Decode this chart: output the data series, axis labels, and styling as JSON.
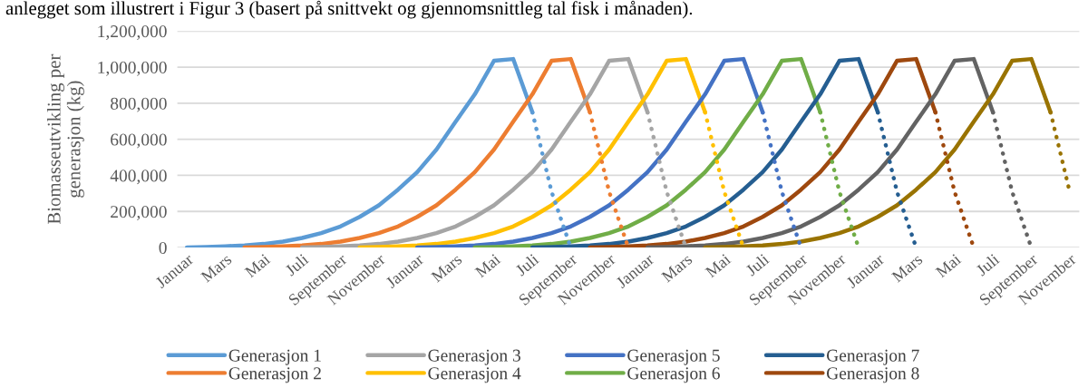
{
  "chart_data": {
    "type": "line",
    "annotations": [
      "anlegget som illustrert i Figur 3 (basert på snittvekt og gjennomsnittleg tal fisk i månaden)."
    ],
    "ylabel": "Biomasseutvikling per\ngenerasjon (kg)",
    "categories": [
      "Januar",
      null,
      "Mars",
      null,
      "Mai",
      null,
      "Juli",
      null,
      "September",
      null,
      "November",
      null,
      "Januar",
      null,
      "Mars",
      null,
      "Mai",
      null,
      "Juli",
      null,
      "September",
      null,
      "November",
      null,
      "Januar",
      null,
      "Mars",
      null,
      "Mai",
      null,
      "Juli",
      null,
      "September",
      null,
      "November",
      null,
      "Januar",
      null,
      "Mars",
      null,
      "Mai",
      null,
      "Juli",
      null,
      "September",
      null,
      "November"
    ],
    "ylim": [
      0,
      1200000
    ],
    "yticks": [
      {
        "value": 0,
        "label": "0"
      },
      {
        "value": 200000,
        "label": "200,000"
      },
      {
        "value": 400000,
        "label": "400,000"
      },
      {
        "value": 600000,
        "label": "600,000"
      },
      {
        "value": 800000,
        "label": "800,000"
      },
      {
        "value": 1000000,
        "label": "1,000,000"
      },
      {
        "value": 1200000,
        "label": "1,200,000"
      }
    ],
    "grid": "y",
    "legend": "bottom",
    "marker": "none",
    "series": [
      {
        "name": "Generasjon 1",
        "color": "#5b9bd5",
        "line_style": "solid",
        "values": [
          1000,
          3000,
          7000,
          12000,
          20000,
          33000,
          53000,
          80000,
          117000,
          170000,
          234000,
          321000,
          418000,
          543000,
          697000,
          849000,
          1035000,
          1045000,
          750000,
          null,
          null,
          null,
          null,
          null,
          null,
          null,
          null,
          null,
          null,
          null,
          null,
          null,
          null,
          null,
          null,
          null,
          null,
          null,
          null,
          null,
          null,
          null,
          null,
          null,
          null,
          null,
          null
        ]
      },
      {
        "name": "Generasjon 2",
        "color": "#ed7d31",
        "line_style": "solid",
        "values": [
          null,
          null,
          null,
          1000,
          3000,
          7000,
          12000,
          20000,
          33000,
          53000,
          80000,
          117000,
          170000,
          234000,
          321000,
          418000,
          543000,
          697000,
          849000,
          1035000,
          1045000,
          750000,
          null,
          null,
          null,
          null,
          null,
          null,
          null,
          null,
          null,
          null,
          null,
          null,
          null,
          null,
          null,
          null,
          null,
          null,
          null,
          null,
          null,
          null,
          null,
          null,
          null
        ]
      },
      {
        "name": "Generasjon 3",
        "color": "#a5a5a5",
        "line_style": "solid",
        "values": [
          null,
          null,
          null,
          null,
          null,
          null,
          1000,
          3000,
          7000,
          12000,
          20000,
          33000,
          53000,
          80000,
          117000,
          170000,
          234000,
          321000,
          418000,
          543000,
          697000,
          849000,
          1035000,
          1045000,
          750000,
          null,
          null,
          null,
          null,
          null,
          null,
          null,
          null,
          null,
          null,
          null,
          null,
          null,
          null,
          null,
          null,
          null,
          null,
          null,
          null,
          null,
          null
        ]
      },
      {
        "name": "Generasjon 4",
        "color": "#ffc000",
        "line_style": "solid",
        "values": [
          null,
          null,
          null,
          null,
          null,
          null,
          null,
          null,
          null,
          1000,
          3000,
          7000,
          12000,
          20000,
          33000,
          53000,
          80000,
          117000,
          170000,
          234000,
          321000,
          418000,
          543000,
          697000,
          849000,
          1035000,
          1045000,
          750000,
          null,
          null,
          null,
          null,
          null,
          null,
          null,
          null,
          null,
          null,
          null,
          null,
          null,
          null,
          null,
          null,
          null,
          null,
          null
        ]
      },
      {
        "name": "Generasjon 5",
        "color": "#4472c4",
        "line_style": "solid",
        "values": [
          null,
          null,
          null,
          null,
          null,
          null,
          null,
          null,
          null,
          null,
          null,
          null,
          1000,
          3000,
          7000,
          12000,
          20000,
          33000,
          53000,
          80000,
          117000,
          170000,
          234000,
          321000,
          418000,
          543000,
          697000,
          849000,
          1035000,
          1045000,
          750000,
          null,
          null,
          null,
          null,
          null,
          null,
          null,
          null,
          null,
          null,
          null,
          null,
          null,
          null,
          null,
          null
        ]
      },
      {
        "name": "Generasjon 6",
        "color": "#70ad47",
        "line_style": "solid",
        "values": [
          null,
          null,
          null,
          null,
          null,
          null,
          null,
          null,
          null,
          null,
          null,
          null,
          null,
          null,
          null,
          1000,
          3000,
          7000,
          12000,
          20000,
          33000,
          53000,
          80000,
          117000,
          170000,
          234000,
          321000,
          418000,
          543000,
          697000,
          849000,
          1035000,
          1045000,
          750000,
          null,
          null,
          null,
          null,
          null,
          null,
          null,
          null,
          null,
          null,
          null,
          null,
          null
        ]
      },
      {
        "name": "Generasjon 7",
        "color": "#255e91",
        "line_style": "solid",
        "values": [
          null,
          null,
          null,
          null,
          null,
          null,
          null,
          null,
          null,
          null,
          null,
          null,
          null,
          null,
          null,
          null,
          null,
          null,
          1000,
          3000,
          7000,
          12000,
          20000,
          33000,
          53000,
          80000,
          117000,
          170000,
          234000,
          321000,
          418000,
          543000,
          697000,
          849000,
          1035000,
          1045000,
          750000,
          null,
          null,
          null,
          null,
          null,
          null,
          null,
          null,
          null,
          null
        ]
      },
      {
        "name": "Generasjon 8",
        "color": "#9e480e",
        "line_style": "solid",
        "values": [
          null,
          null,
          null,
          null,
          null,
          null,
          null,
          null,
          null,
          null,
          null,
          null,
          null,
          null,
          null,
          null,
          null,
          null,
          null,
          null,
          null,
          1000,
          3000,
          7000,
          12000,
          20000,
          33000,
          53000,
          80000,
          117000,
          170000,
          234000,
          321000,
          418000,
          543000,
          697000,
          849000,
          1035000,
          1045000,
          750000,
          null,
          null,
          null,
          null,
          null,
          null,
          null
        ]
      },
      {
        "color": "#636363",
        "line_style": "solid",
        "values": [
          null,
          null,
          null,
          null,
          null,
          null,
          null,
          null,
          null,
          null,
          null,
          null,
          null,
          null,
          null,
          null,
          null,
          null,
          null,
          null,
          null,
          null,
          null,
          null,
          1000,
          3000,
          7000,
          12000,
          20000,
          33000,
          53000,
          80000,
          117000,
          170000,
          234000,
          321000,
          418000,
          543000,
          697000,
          849000,
          1035000,
          1045000,
          750000,
          null,
          null,
          null,
          null
        ]
      },
      {
        "color": "#997300",
        "line_style": "solid",
        "values": [
          null,
          null,
          null,
          null,
          null,
          null,
          null,
          null,
          null,
          null,
          null,
          null,
          null,
          null,
          null,
          null,
          null,
          null,
          null,
          null,
          null,
          null,
          null,
          null,
          null,
          null,
          null,
          1000,
          3000,
          7000,
          12000,
          20000,
          33000,
          53000,
          80000,
          117000,
          170000,
          234000,
          321000,
          418000,
          543000,
          697000,
          849000,
          1035000,
          1045000,
          750000,
          null
        ]
      },
      {
        "color": "#5b9bd5",
        "line_style": "dotted",
        "values": [
          null,
          null,
          null,
          null,
          null,
          null,
          null,
          null,
          null,
          null,
          null,
          null,
          null,
          null,
          null,
          null,
          null,
          null,
          750000,
          310000,
          0,
          null,
          null,
          null,
          null,
          null,
          null,
          null,
          null,
          null,
          null,
          null,
          null,
          null,
          null,
          null,
          null,
          null,
          null,
          null,
          null,
          null,
          null,
          null,
          null,
          null,
          null
        ]
      },
      {
        "color": "#ed7d31",
        "line_style": "dotted",
        "values": [
          null,
          null,
          null,
          null,
          null,
          null,
          null,
          null,
          null,
          null,
          null,
          null,
          null,
          null,
          null,
          null,
          null,
          null,
          null,
          null,
          null,
          750000,
          310000,
          0,
          null,
          null,
          null,
          null,
          null,
          null,
          null,
          null,
          null,
          null,
          null,
          null,
          null,
          null,
          null,
          null,
          null,
          null,
          null,
          null,
          null,
          null,
          null
        ]
      },
      {
        "color": "#a5a5a5",
        "line_style": "dotted",
        "values": [
          null,
          null,
          null,
          null,
          null,
          null,
          null,
          null,
          null,
          null,
          null,
          null,
          null,
          null,
          null,
          null,
          null,
          null,
          null,
          null,
          null,
          null,
          null,
          null,
          750000,
          310000,
          0,
          null,
          null,
          null,
          null,
          null,
          null,
          null,
          null,
          null,
          null,
          null,
          null,
          null,
          null,
          null,
          null,
          null,
          null,
          null,
          null
        ]
      },
      {
        "color": "#ffc000",
        "line_style": "dotted",
        "values": [
          null,
          null,
          null,
          null,
          null,
          null,
          null,
          null,
          null,
          null,
          null,
          null,
          null,
          null,
          null,
          null,
          null,
          null,
          null,
          null,
          null,
          null,
          null,
          null,
          null,
          null,
          null,
          750000,
          310000,
          0,
          null,
          null,
          null,
          null,
          null,
          null,
          null,
          null,
          null,
          null,
          null,
          null,
          null,
          null,
          null,
          null,
          null
        ]
      },
      {
        "color": "#4472c4",
        "line_style": "dotted",
        "values": [
          null,
          null,
          null,
          null,
          null,
          null,
          null,
          null,
          null,
          null,
          null,
          null,
          null,
          null,
          null,
          null,
          null,
          null,
          null,
          null,
          null,
          null,
          null,
          null,
          null,
          null,
          null,
          null,
          null,
          null,
          750000,
          310000,
          0,
          null,
          null,
          null,
          null,
          null,
          null,
          null,
          null,
          null,
          null,
          null,
          null,
          null,
          null
        ]
      },
      {
        "color": "#70ad47",
        "line_style": "dotted",
        "values": [
          null,
          null,
          null,
          null,
          null,
          null,
          null,
          null,
          null,
          null,
          null,
          null,
          null,
          null,
          null,
          null,
          null,
          null,
          null,
          null,
          null,
          null,
          null,
          null,
          null,
          null,
          null,
          null,
          null,
          null,
          null,
          null,
          null,
          750000,
          310000,
          0,
          null,
          null,
          null,
          null,
          null,
          null,
          null,
          null,
          null,
          null,
          null
        ]
      },
      {
        "color": "#255e91",
        "line_style": "dotted",
        "values": [
          null,
          null,
          null,
          null,
          null,
          null,
          null,
          null,
          null,
          null,
          null,
          null,
          null,
          null,
          null,
          null,
          null,
          null,
          null,
          null,
          null,
          null,
          null,
          null,
          null,
          null,
          null,
          null,
          null,
          null,
          null,
          null,
          null,
          null,
          null,
          null,
          750000,
          310000,
          0,
          null,
          null,
          null,
          null,
          null,
          null,
          null,
          null
        ]
      },
      {
        "color": "#9e480e",
        "line_style": "dotted",
        "values": [
          null,
          null,
          null,
          null,
          null,
          null,
          null,
          null,
          null,
          null,
          null,
          null,
          null,
          null,
          null,
          null,
          null,
          null,
          null,
          null,
          null,
          null,
          null,
          null,
          null,
          null,
          null,
          null,
          null,
          null,
          null,
          null,
          null,
          null,
          null,
          null,
          null,
          null,
          null,
          750000,
          310000,
          0,
          null,
          null,
          null,
          null,
          null
        ]
      },
      {
        "color": "#636363",
        "line_style": "dotted",
        "values": [
          null,
          null,
          null,
          null,
          null,
          null,
          null,
          null,
          null,
          null,
          null,
          null,
          null,
          null,
          null,
          null,
          null,
          null,
          null,
          null,
          null,
          null,
          null,
          null,
          null,
          null,
          null,
          null,
          null,
          null,
          null,
          null,
          null,
          null,
          null,
          null,
          null,
          null,
          null,
          null,
          null,
          null,
          750000,
          310000,
          0,
          null,
          null
        ]
      },
      {
        "color": "#997300",
        "line_style": "dotted",
        "values": [
          null,
          null,
          null,
          null,
          null,
          null,
          null,
          null,
          null,
          null,
          null,
          null,
          null,
          null,
          null,
          null,
          null,
          null,
          null,
          null,
          null,
          null,
          null,
          null,
          null,
          null,
          null,
          null,
          null,
          null,
          null,
          null,
          null,
          null,
          null,
          null,
          null,
          null,
          null,
          null,
          null,
          null,
          null,
          null,
          null,
          750000,
          310000
        ]
      }
    ]
  }
}
